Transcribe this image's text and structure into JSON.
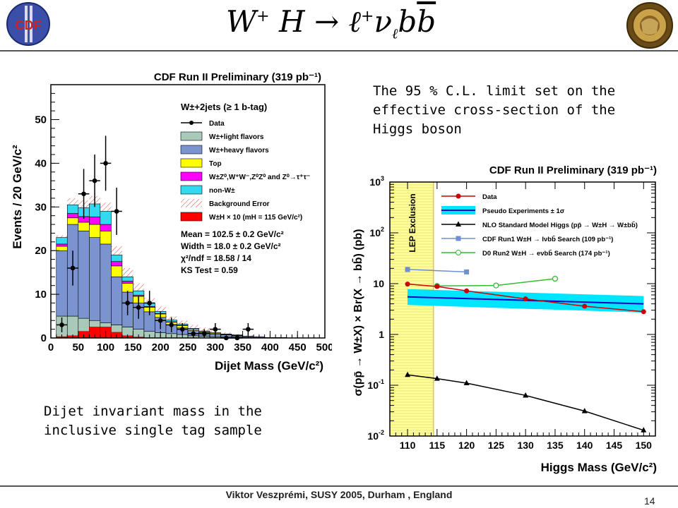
{
  "header": {
    "title_parts": {
      "W": "W",
      "Wsup": "+",
      "H": "H",
      "arrow": "→",
      "l": "ℓ",
      "lsup": "+",
      "nu": "ν",
      "nusub": "ℓ",
      "bb": "b",
      "bbar": "b"
    },
    "logo_left_text": "CDF",
    "logo_right_text": "Anniversary seal"
  },
  "caption_right": "The 95 % C.L. limit set on the effective cross-section of the Higgs boson",
  "caption_left": "Dijet invariant mass in the inclusive single tag sample",
  "footer": "Viktor Veszprémi, SUSY 2005, Durham , England",
  "page_number": "14",
  "colors": {
    "data": "#000000",
    "light": "#a9c9b9",
    "heavy": "#7b93cf",
    "top": "#ffff00",
    "diboson": "#ff00ff",
    "nonw": "#33d9ee",
    "signal": "#ff0000",
    "lep": "#ffff99",
    "pseudo": "#00e5ff",
    "pseudo_line": "#0000cc",
    "run1": "#6e8fd0",
    "d0": "#33bb33",
    "limit": "#cc0000"
  },
  "chart_data": [
    {
      "type": "bar",
      "title": "CDF Run II Preliminary (319 pb⁻¹)",
      "xlabel": "Dijet Mass (GeV/c²)",
      "ylabel": "Events / 20 GeV/c²",
      "xlim": [
        0,
        500
      ],
      "ylim": [
        0,
        58
      ],
      "xticks": [
        "0",
        "50",
        "100",
        "150",
        "200",
        "250",
        "300",
        "350",
        "400",
        "450",
        "500"
      ],
      "yticks": [
        "0",
        "10",
        "20",
        "30",
        "40",
        "50"
      ],
      "bin_edges": [
        10,
        30,
        50,
        70,
        90,
        110,
        130,
        150,
        170,
        190,
        210,
        230,
        250,
        270,
        290,
        310,
        330,
        350,
        370,
        390,
        410,
        430,
        450
      ],
      "legend_header": "W±+2jets (≥ 1 b-tag)",
      "legend": [
        {
          "key": "data",
          "label": "Data"
        },
        {
          "key": "light",
          "label": "W±+light flavors"
        },
        {
          "key": "heavy",
          "label": "W±+heavy flavors"
        },
        {
          "key": "top",
          "label": "Top"
        },
        {
          "key": "diboson",
          "label": "W±Z⁰,W⁺W⁻,Z⁰Z⁰ and Z⁰→τ⁺τ⁻"
        },
        {
          "key": "nonw",
          "label": "non-W±"
        },
        {
          "key": "error",
          "label": "Background Error"
        },
        {
          "key": "signal",
          "label": "W±H × 10 (mH = 115 GeV/c²)"
        }
      ],
      "stats": [
        "Mean = 102.5 ± 0.2 GeV/c²",
        "Width = 18.0 ± 0.2 GeV/c²",
        "χ²/ndf = 18.58 / 14",
        "KS Test = 0.59"
      ],
      "stack": {
        "light": [
          5,
          5,
          4.5,
          4,
          3.5,
          3,
          2.5,
          2,
          1.5,
          1.2,
          1,
          0.8,
          0.5,
          0.4,
          0.3,
          0.2,
          0.2,
          0.1,
          0.1,
          0,
          0,
          0
        ],
        "heavy": [
          15,
          21,
          20,
          19,
          18,
          11,
          8,
          6,
          4.5,
          3.5,
          2,
          1.5,
          1.2,
          0.8,
          0.6,
          0.5,
          0.3,
          0.2,
          0.2,
          0.1,
          0.1,
          0
        ],
        "top": [
          1,
          1.5,
          2,
          3,
          3,
          2.5,
          2,
          1.5,
          1,
          0.8,
          0.6,
          0.5,
          0.3,
          0.2,
          0.2,
          0.1,
          0.1,
          0.1,
          0,
          0,
          0,
          0
        ],
        "diboson": [
          0.5,
          1,
          1.3,
          1.7,
          1.5,
          1,
          0.5,
          0.3,
          0.2,
          0.1,
          0.1,
          0.1,
          0,
          0,
          0,
          0,
          0,
          0,
          0,
          0,
          0,
          0
        ],
        "nonw": [
          1.5,
          2,
          2,
          3,
          3,
          1.5,
          1,
          1,
          0.8,
          0.5,
          0.4,
          0.3,
          0.2,
          0.2,
          0.1,
          0.1,
          0.1,
          0,
          0,
          0,
          0,
          0
        ]
      },
      "error_band": [
        23.5,
        32,
        31.5,
        32.5,
        31,
        21,
        16,
        12.5,
        9.2,
        7.2,
        5,
        4,
        3,
        2.4,
        1.7,
        1.3,
        0.9,
        0.6,
        0.4,
        0.2,
        0.2,
        0
      ],
      "signal": [
        0.3,
        0.5,
        1.5,
        2.5,
        2.5,
        1.3,
        0.5,
        0.2,
        0,
        0,
        0,
        0,
        0,
        0,
        0,
        0,
        0,
        0,
        0,
        0,
        0,
        0
      ],
      "data": {
        "x": [
          20,
          40,
          60,
          80,
          100,
          120,
          140,
          160,
          180,
          200,
          220,
          240,
          260,
          280,
          300,
          320,
          340,
          360
        ],
        "y": [
          3,
          16,
          33,
          36,
          40,
          29,
          8,
          7,
          8,
          4,
          3,
          2,
          1,
          1,
          2,
          0,
          0,
          2
        ],
        "err": [
          1.7,
          4,
          5.7,
          6,
          6.3,
          5.4,
          2.8,
          2.6,
          2.8,
          2,
          1.7,
          1.4,
          1,
          1,
          1.4,
          0,
          0,
          1.4
        ]
      }
    },
    {
      "type": "line",
      "title": "CDF Run II Preliminary (319 pb⁻¹)",
      "xlabel": "Higgs Mass (GeV/c²)",
      "ylabel": "σ(pp̄ → W±X) × Br(X → bb̄) (pb)",
      "xlim": [
        107,
        152
      ],
      "ylim": [
        0.01,
        1000
      ],
      "ylog": true,
      "xticks": [
        "110",
        "115",
        "120",
        "125",
        "130",
        "135",
        "140",
        "145",
        "150"
      ],
      "yticks": [
        {
          "v": 0.01,
          "base": "10",
          "exp": "-2"
        },
        {
          "v": 0.1,
          "base": "10",
          "exp": "-1"
        },
        {
          "v": 1,
          "base": "1",
          "exp": ""
        },
        {
          "v": 10,
          "base": "10",
          "exp": ""
        },
        {
          "v": 100,
          "base": "10",
          "exp": "2"
        },
        {
          "v": 1000,
          "base": "10",
          "exp": "3"
        }
      ],
      "lep_exclusion": {
        "x": [
          107,
          114.4
        ],
        "label": "LEP Exclusion"
      },
      "legend": [
        {
          "key": "data",
          "label": "Data"
        },
        {
          "key": "pseudo",
          "label": "Pseudo Experiments ± 1σ"
        },
        {
          "key": "sm",
          "label": "NLO Standard Model Higgs (pp̄ → W±H → W±bb̄)"
        },
        {
          "key": "run1",
          "label": "CDF Run1 W±H → lνbb̄ Search (109 pb⁻¹)"
        },
        {
          "key": "d0",
          "label": "D0 Run2 W±H → eνbb̄ Search (174 pb⁻¹)"
        }
      ],
      "series": [
        {
          "key": "data",
          "x": [
            110,
            115,
            120,
            130,
            140,
            150
          ],
          "y": [
            9.8,
            8.8,
            7.2,
            5.0,
            3.6,
            2.8
          ]
        },
        {
          "key": "pseudo_center",
          "x": [
            110,
            150
          ],
          "y": [
            5.5,
            4.0
          ]
        },
        {
          "key": "pseudo_upper",
          "x": [
            110,
            150
          ],
          "y": [
            7.8,
            5.7
          ]
        },
        {
          "key": "pseudo_lower",
          "x": [
            110,
            150
          ],
          "y": [
            3.8,
            2.7
          ]
        },
        {
          "key": "sm",
          "x": [
            110,
            115,
            120,
            130,
            140,
            150
          ],
          "y": [
            0.16,
            0.135,
            0.11,
            0.063,
            0.031,
            0.013
          ]
        },
        {
          "key": "run1",
          "x": [
            110,
            120
          ],
          "y": [
            19,
            17
          ]
        },
        {
          "key": "d0",
          "x": [
            115,
            125,
            135
          ],
          "y": [
            9.0,
            9.2,
            12.5
          ]
        }
      ]
    }
  ]
}
